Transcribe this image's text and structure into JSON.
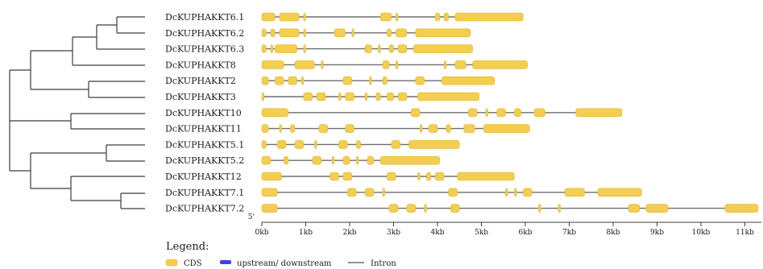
{
  "colors": {
    "cds": "#f3ce4f",
    "cds_stroke": "#e0b634",
    "intron": "#6e6e6e",
    "utr": "#3a45e0",
    "tree": "#3c3c3c",
    "text": "#1a1a1a"
  },
  "genes": [
    {
      "name": "DcKUPHAKKT6.1",
      "length": 5.95,
      "cds": [
        [
          0.0,
          0.3
        ],
        [
          0.4,
          0.85
        ],
        [
          0.95,
          1.0
        ],
        [
          2.7,
          2.95
        ],
        [
          3.05,
          3.1
        ],
        [
          3.95,
          4.05
        ],
        [
          4.15,
          4.25
        ],
        [
          4.4,
          5.95
        ]
      ]
    },
    {
      "name": "DcKUPHAKKT6.2",
      "length": 4.75,
      "cds": [
        [
          0.0,
          0.1
        ],
        [
          0.2,
          0.3
        ],
        [
          0.4,
          0.85
        ],
        [
          0.95,
          1.0
        ],
        [
          1.65,
          1.9
        ],
        [
          2.05,
          2.1
        ],
        [
          2.85,
          2.95
        ],
        [
          3.05,
          3.3
        ],
        [
          3.5,
          4.75
        ]
      ]
    },
    {
      "name": "DcKUPHAKKT6.3",
      "length": 4.8,
      "cds": [
        [
          0.0,
          0.1
        ],
        [
          0.2,
          0.25
        ],
        [
          0.3,
          0.8
        ],
        [
          0.95,
          1.0
        ],
        [
          2.35,
          2.5
        ],
        [
          2.65,
          2.7
        ],
        [
          2.9,
          3.0
        ],
        [
          3.1,
          3.3
        ],
        [
          3.45,
          4.8
        ]
      ]
    },
    {
      "name": "DcKUPHAKKT8",
      "length": 6.05,
      "cds": [
        [
          0.0,
          0.5
        ],
        [
          0.75,
          1.2
        ],
        [
          1.35,
          1.4
        ],
        [
          2.75,
          2.9
        ],
        [
          3.05,
          3.1
        ],
        [
          4.15,
          4.2
        ],
        [
          4.4,
          4.65
        ],
        [
          4.8,
          6.05
        ]
      ]
    },
    {
      "name": "DcKUPHAKKT2",
      "length": 5.3,
      "cds": [
        [
          0.0,
          0.15
        ],
        [
          0.3,
          0.5
        ],
        [
          0.6,
          0.8
        ],
        [
          0.9,
          0.95
        ],
        [
          1.85,
          2.05
        ],
        [
          2.45,
          2.5
        ],
        [
          2.75,
          2.85
        ],
        [
          3.5,
          3.7
        ],
        [
          4.1,
          5.3
        ]
      ]
    },
    {
      "name": "DcKUPHAKKT3",
      "length": 4.95,
      "cds": [
        [
          0.0,
          0.05
        ],
        [
          0.95,
          1.15
        ],
        [
          1.25,
          1.45
        ],
        [
          1.75,
          1.8
        ],
        [
          1.9,
          2.1
        ],
        [
          2.35,
          2.4
        ],
        [
          2.6,
          2.7
        ],
        [
          2.85,
          3.0
        ],
        [
          3.1,
          3.3
        ],
        [
          3.55,
          4.95
        ]
      ]
    },
    {
      "name": "DcKUPHAKKT10",
      "length": 8.2,
      "cds": [
        [
          0.0,
          0.6
        ],
        [
          3.4,
          3.6
        ],
        [
          4.7,
          4.9
        ],
        [
          5.1,
          5.15
        ],
        [
          5.35,
          5.55
        ],
        [
          5.75,
          5.9
        ],
        [
          6.2,
          6.45
        ],
        [
          7.15,
          8.2
        ]
      ]
    },
    {
      "name": "DcKUPHAKKT11",
      "length": 6.1,
      "cds": [
        [
          0.0,
          0.15
        ],
        [
          0.4,
          0.45
        ],
        [
          0.65,
          0.75
        ],
        [
          1.3,
          1.5
        ],
        [
          1.9,
          2.1
        ],
        [
          3.6,
          3.65
        ],
        [
          3.8,
          4.0
        ],
        [
          4.2,
          4.3
        ],
        [
          4.6,
          4.85
        ],
        [
          5.05,
          6.1
        ]
      ]
    },
    {
      "name": "DcKUPHAKKT5.1",
      "length": 4.5,
      "cds": [
        [
          0.0,
          0.1
        ],
        [
          0.35,
          0.55
        ],
        [
          0.75,
          0.95
        ],
        [
          1.2,
          1.25
        ],
        [
          1.75,
          1.95
        ],
        [
          2.15,
          2.25
        ],
        [
          2.95,
          3.15
        ],
        [
          3.35,
          4.5
        ]
      ]
    },
    {
      "name": "DcKUPHAKKT5.2",
      "length": 4.05,
      "cds": [
        [
          0.0,
          0.2
        ],
        [
          0.5,
          0.6
        ],
        [
          1.15,
          1.35
        ],
        [
          1.6,
          1.65
        ],
        [
          1.85,
          2.0
        ],
        [
          2.15,
          2.2
        ],
        [
          2.4,
          2.55
        ],
        [
          2.7,
          4.05
        ]
      ]
    },
    {
      "name": "DcKUPHAKKT12",
      "length": 5.75,
      "cds": [
        [
          0.0,
          0.45
        ],
        [
          1.55,
          1.75
        ],
        [
          1.85,
          2.05
        ],
        [
          2.85,
          3.05
        ],
        [
          3.55,
          3.6
        ],
        [
          3.75,
          3.85
        ],
        [
          3.95,
          4.15
        ],
        [
          4.45,
          5.75
        ]
      ]
    },
    {
      "name": "DcKUPHAKKT7.1",
      "length": 8.65,
      "cds": [
        [
          0.0,
          0.35
        ],
        [
          1.95,
          2.15
        ],
        [
          2.35,
          2.55
        ],
        [
          2.75,
          2.8
        ],
        [
          4.25,
          4.45
        ],
        [
          5.55,
          5.6
        ],
        [
          5.75,
          5.8
        ],
        [
          5.95,
          6.15
        ],
        [
          6.9,
          7.35
        ],
        [
          7.65,
          8.65
        ]
      ]
    },
    {
      "name": "DcKUPHAKKT7.2",
      "length": 11.3,
      "cds": [
        [
          0.0,
          0.35
        ],
        [
          2.9,
          3.1
        ],
        [
          3.3,
          3.5
        ],
        [
          3.7,
          3.75
        ],
        [
          4.3,
          4.5
        ],
        [
          6.3,
          6.35
        ],
        [
          6.75,
          6.8
        ],
        [
          8.35,
          8.6
        ],
        [
          8.75,
          9.25
        ],
        [
          10.55,
          11.3
        ]
      ]
    }
  ],
  "axis": {
    "five_prime_label": "5'",
    "min": 0,
    "max": 11.3,
    "ticks": [
      0,
      1,
      2,
      3,
      4,
      5,
      6,
      7,
      8,
      9,
      10,
      11
    ],
    "tick_labels": [
      "0kb",
      "1kb",
      "2kb",
      "3kb",
      "4kb",
      "5kb",
      "6kb",
      "7kb",
      "8kb",
      "9kb",
      "10kb",
      "11kb"
    ]
  },
  "legend": {
    "title": "Legend:",
    "cds_label": "CDS",
    "utr_label": "upstream/ downstream",
    "intron_label": "Intron"
  }
}
